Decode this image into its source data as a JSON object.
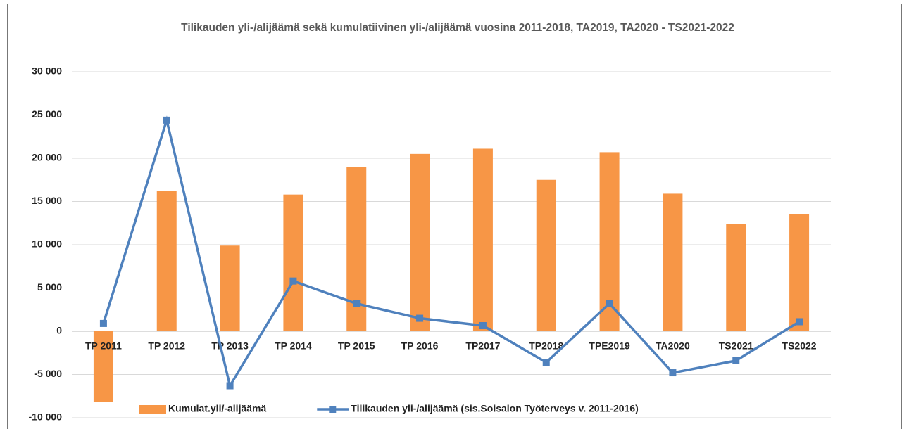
{
  "chart_data": {
    "type": "bar-line",
    "title": "Tilikauden yli-/alijäämä sekä kumulatiivinen yli-/alijäämä vuosina 2011-2018, TA2019, TA2020 - TS2021-2022",
    "categories": [
      "TP 2011",
      "TP 2012",
      "TP 2013",
      "TP 2014",
      "TP 2015",
      "TP 2016",
      "TP2017",
      "TP2018",
      "TPE2019",
      "TA2020",
      "TS2021",
      "TS2022"
    ],
    "series": [
      {
        "name": "Kumulat.yli/-alijäämä",
        "type": "bar",
        "color": "#f79646",
        "values": [
          -8200,
          16200,
          9900,
          15800,
          19000,
          20500,
          21100,
          17500,
          20700,
          15900,
          12400,
          13500
        ]
      },
      {
        "name": "Tilikauden yli-/alijäämä (sis.Soisalon Työterveys v. 2011-2016)",
        "type": "line",
        "color": "#4f81bd",
        "values": [
          900,
          24400,
          -6300,
          5800,
          3200,
          1500,
          650,
          -3600,
          3200,
          -4800,
          -3400,
          1100
        ]
      }
    ],
    "ylim": [
      -10000,
      30000
    ],
    "yticks": [
      {
        "value": -10000,
        "label": "-10 000"
      },
      {
        "value": -5000,
        "label": "-5 000"
      },
      0,
      {
        "value": 5000,
        "label": "5 000"
      },
      {
        "value": 10000,
        "label": "10 000"
      },
      {
        "value": 15000,
        "label": "15 000"
      },
      {
        "value": 20000,
        "label": "20 000"
      },
      {
        "value": 25000,
        "label": "25 000"
      },
      {
        "value": 30000,
        "label": "30 000"
      }
    ],
    "grid": true,
    "legend": "bottom"
  }
}
